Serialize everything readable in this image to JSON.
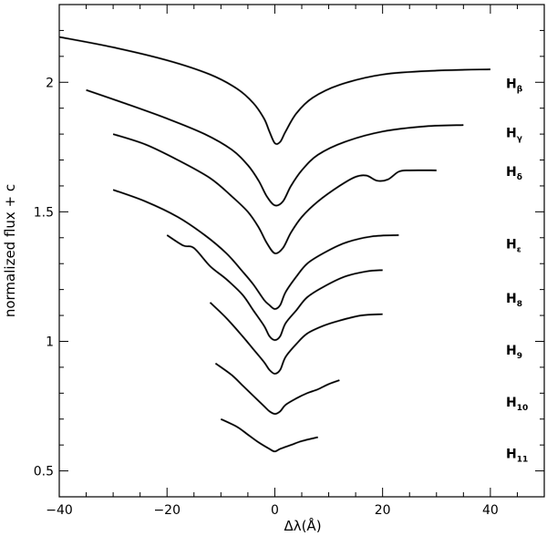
{
  "chart_data": {
    "type": "line",
    "xlabel": "Δλ(Å)",
    "ylabel": "normalized flux + c",
    "xlim": [
      -40,
      50
    ],
    "ylim": [
      0.4,
      2.3
    ],
    "xticks": [
      -40,
      -20,
      0,
      20,
      40
    ],
    "xtick_labels": [
      "−40",
      "−20",
      "0",
      "20",
      "40"
    ],
    "yticks": [
      0.5,
      1,
      1.5,
      2
    ],
    "ytick_labels": [
      "0.5",
      "1",
      "1.5",
      "2"
    ],
    "grid": false,
    "legend": "none",
    "series": [
      {
        "label_main": "H",
        "label_sub": "β",
        "label_y": 2.0,
        "x": [
          -40,
          -30,
          -20,
          -12,
          -7,
          -4,
          -2,
          -1,
          0,
          1,
          2,
          4,
          7,
          12,
          20,
          30,
          40
        ],
        "y": [
          2.175,
          2.135,
          2.085,
          2.03,
          1.975,
          1.92,
          1.86,
          1.81,
          1.765,
          1.77,
          1.81,
          1.88,
          1.94,
          1.99,
          2.03,
          2.045,
          2.05
        ]
      },
      {
        "label_main": "H",
        "label_sub": "γ",
        "label_y": 1.81,
        "x": [
          -35,
          -28,
          -20,
          -13,
          -8,
          -5,
          -3,
          -1.5,
          0,
          1.5,
          3,
          5,
          8,
          13,
          20,
          28,
          35
        ],
        "y": [
          1.97,
          1.92,
          1.86,
          1.8,
          1.74,
          1.68,
          1.62,
          1.56,
          1.525,
          1.54,
          1.6,
          1.66,
          1.72,
          1.77,
          1.81,
          1.83,
          1.835
        ]
      },
      {
        "label_main": "H",
        "label_sub": "δ",
        "label_y": 1.66,
        "x": [
          -30,
          -24,
          -18,
          -12,
          -8,
          -5,
          -3,
          -1.5,
          0,
          1.5,
          3,
          5,
          8,
          12,
          15,
          17,
          19,
          21,
          23,
          25,
          30
        ],
        "y": [
          1.8,
          1.76,
          1.7,
          1.63,
          1.56,
          1.5,
          1.44,
          1.38,
          1.34,
          1.36,
          1.42,
          1.48,
          1.54,
          1.6,
          1.635,
          1.64,
          1.62,
          1.625,
          1.655,
          1.66,
          1.66
        ]
      },
      {
        "label_main": "H",
        "label_sub": "ε",
        "label_y": 1.38,
        "x": [
          -30,
          -24,
          -18,
          -13,
          -9,
          -6,
          -4,
          -2,
          -1,
          0,
          1,
          2,
          4,
          6,
          9,
          13,
          18,
          23
        ],
        "y": [
          1.585,
          1.54,
          1.48,
          1.41,
          1.34,
          1.27,
          1.22,
          1.16,
          1.14,
          1.125,
          1.14,
          1.19,
          1.25,
          1.3,
          1.34,
          1.38,
          1.405,
          1.41
        ]
      },
      {
        "label_main": "H",
        "label_sub": "8",
        "label_y": 1.17,
        "x": [
          -20,
          -17,
          -15,
          -12,
          -9,
          -6,
          -4,
          -2,
          -1,
          0,
          1,
          2,
          4,
          6,
          9,
          13,
          17,
          20
        ],
        "y": [
          1.41,
          1.37,
          1.36,
          1.29,
          1.24,
          1.18,
          1.12,
          1.06,
          1.02,
          1.005,
          1.02,
          1.07,
          1.12,
          1.17,
          1.21,
          1.25,
          1.27,
          1.275
        ]
      },
      {
        "label_main": "H",
        "label_sub": "9",
        "label_y": 0.97,
        "x": [
          -12,
          -9,
          -6,
          -4,
          -2,
          -1,
          0,
          1,
          2,
          4,
          6,
          9,
          12,
          16,
          20
        ],
        "y": [
          1.15,
          1.09,
          1.02,
          0.97,
          0.92,
          0.89,
          0.875,
          0.89,
          0.94,
          0.99,
          1.03,
          1.06,
          1.08,
          1.1,
          1.105
        ]
      },
      {
        "label_main": "H",
        "label_sub": "10",
        "label_y": 0.77,
        "x": [
          -11,
          -8,
          -6,
          -4,
          -2,
          -1,
          0,
          1,
          2,
          4,
          6,
          8,
          10,
          12
        ],
        "y": [
          0.915,
          0.87,
          0.83,
          0.79,
          0.75,
          0.73,
          0.72,
          0.73,
          0.755,
          0.78,
          0.8,
          0.815,
          0.835,
          0.85
        ]
      },
      {
        "label_main": "H",
        "label_sub": "11",
        "label_y": 0.57,
        "x": [
          -10,
          -7,
          -5,
          -3,
          -1,
          0,
          1,
          3,
          5,
          8
        ],
        "y": [
          0.7,
          0.67,
          0.64,
          0.61,
          0.585,
          0.575,
          0.585,
          0.6,
          0.615,
          0.63
        ]
      }
    ]
  }
}
